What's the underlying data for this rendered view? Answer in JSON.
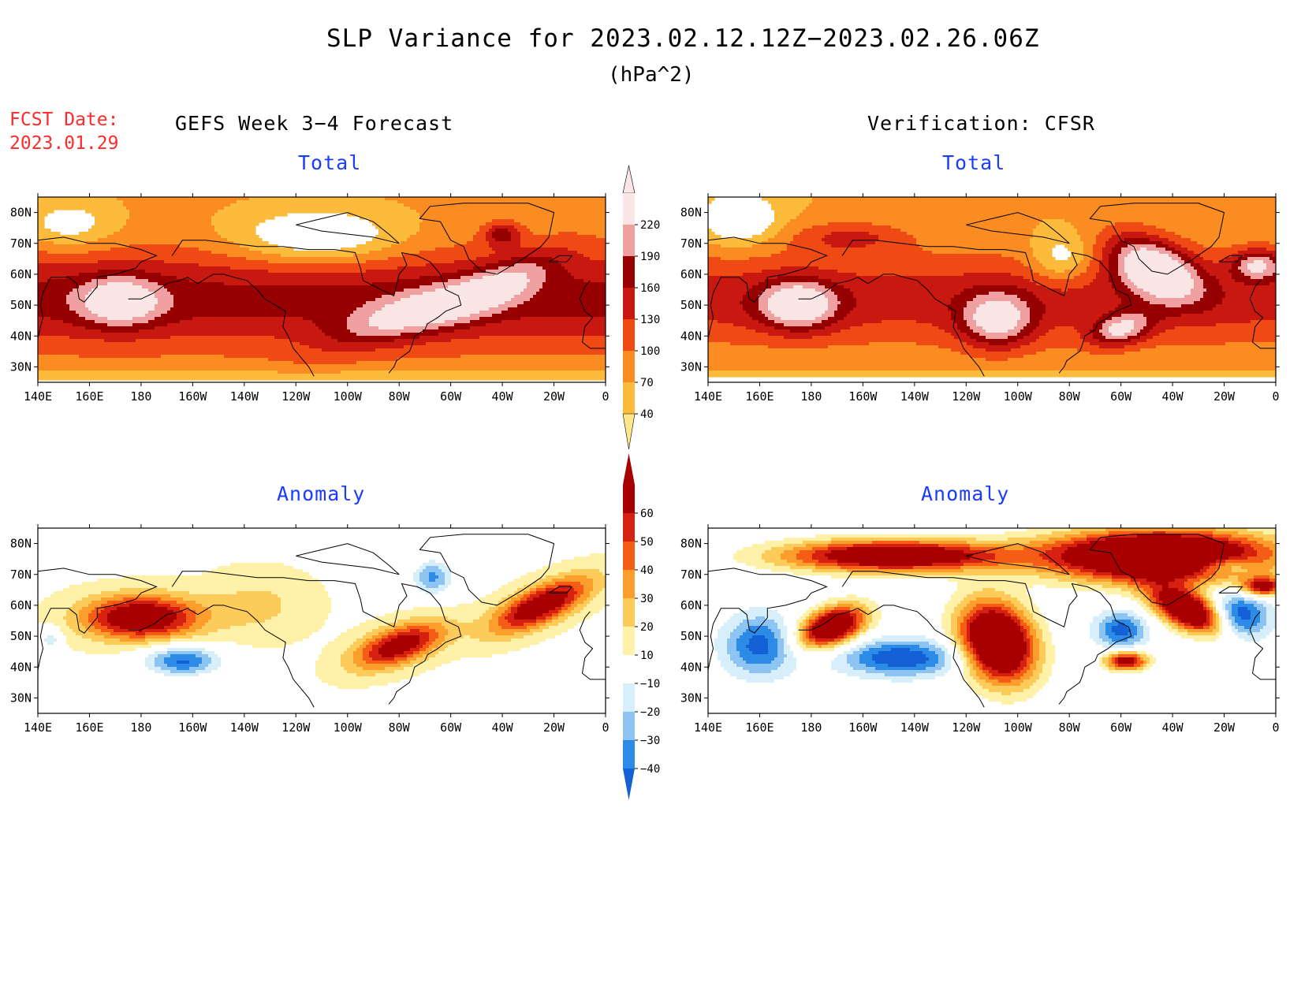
{
  "title": "SLP Variance for 2023.02.12.12Z−2023.02.26.06Z",
  "units": "(hPa^2)",
  "fcst_date_label": "FCST Date:",
  "fcst_date_value": "2023.01.29",
  "left_header": "GEFS Week 3−4 Forecast",
  "right_header": "Verification: CFSR",
  "panels": [
    {
      "id": "forecast-total",
      "subtitle": "Total",
      "field": "total"
    },
    {
      "id": "verification-total",
      "subtitle": "Total",
      "field": "total"
    },
    {
      "id": "forecast-anomaly",
      "subtitle": "Anomaly",
      "field": "anomaly"
    },
    {
      "id": "verification-anomaly",
      "subtitle": "Anomaly",
      "field": "anomaly"
    }
  ],
  "axes": {
    "lon_labels": [
      "140E",
      "160E",
      "180",
      "160W",
      "140W",
      "120W",
      "100W",
      "80W",
      "60W",
      "40W",
      "20W",
      "0"
    ],
    "lat_labels": [
      "30N",
      "40N",
      "50N",
      "60N",
      "70N",
      "80N"
    ]
  },
  "colorbars": {
    "total": {
      "levels": [
        "40",
        "70",
        "100",
        "130",
        "160",
        "190",
        "220"
      ],
      "colors": [
        "#fee88b",
        "#fdbb3c",
        "#fb8c22",
        "#ef4a14",
        "#c81810",
        "#960000",
        "#f0a0a0",
        "#fbe6e6"
      ]
    },
    "anomaly": {
      "levels": [
        "−40",
        "−30",
        "−20",
        "−10",
        "10",
        "20",
        "30",
        "40",
        "50",
        "60"
      ],
      "colors": [
        "#1461d6",
        "#2d8be8",
        "#8ec4f2",
        "#d6effb",
        "#ffffff",
        "#fff2a8",
        "#fdcb5a",
        "#fc9e2c",
        "#f55d16",
        "#d62010",
        "#a80000"
      ]
    }
  },
  "chart_data": [
    {
      "type": "heatmap",
      "title": "Total",
      "group": "GEFS Week 3−4 Forecast",
      "xlabel": "",
      "ylabel": "",
      "lon_range": [
        140,
        360
      ],
      "lat_range": [
        25,
        85
      ],
      "features": [
        {
          "region": "North Pacific (170E, 50N)",
          "level": 220
        },
        {
          "region": "North America (105W–75W, 45N)",
          "level": 160
        },
        {
          "region": "North Atlantic (60W–20W, 50–60N)",
          "level": 190
        },
        {
          "region": "Greenland Sea (40W, 72N)",
          "level": 220
        }
      ]
    },
    {
      "type": "heatmap",
      "title": "Total",
      "group": "Verification: CFSR",
      "xlabel": "",
      "ylabel": "",
      "lon_range": [
        140,
        360
      ],
      "lat_range": [
        25,
        85
      ],
      "features": [
        {
          "region": "North Pacific (175E, 50N)",
          "level": 220
        },
        {
          "region": "Western North America (110W, 45N)",
          "level": 220
        },
        {
          "region": "Greenland / North Atlantic (50W–40W, 50–75N)",
          "level": 220
        },
        {
          "region": "Northwest Atlantic (60W, 42N)",
          "level": 220
        },
        {
          "region": "Northeast Atlantic (10W, 63N)",
          "level": 220
        }
      ]
    },
    {
      "type": "heatmap",
      "title": "Anomaly",
      "group": "GEFS Week 3−4 Forecast",
      "xlabel": "",
      "ylabel": "",
      "lon_range": [
        140,
        360
      ],
      "lat_range": [
        25,
        85
      ],
      "features": [
        {
          "region": "North Pacific (180, 57N)",
          "level": 60
        },
        {
          "region": "Central Pacific (165W, 42N)",
          "level": -40
        },
        {
          "region": "Great Lakes (85W, 47N)",
          "level": 60
        },
        {
          "region": "Northeast Atlantic (15W, 60N)",
          "level": 60
        },
        {
          "region": "Labrador (70W, 68N)",
          "level": -30
        }
      ]
    },
    {
      "type": "heatmap",
      "title": "Anomaly",
      "group": "Verification: CFSR",
      "xlabel": "",
      "ylabel": "",
      "lon_range": [
        140,
        360
      ],
      "lat_range": [
        25,
        85
      ],
      "features": [
        {
          "region": "Alaska / Bering (160W–130W, 75N)",
          "level": 60
        },
        {
          "region": "North Pacific (170E, 50N)",
          "level": 60
        },
        {
          "region": "Western North America (110W, 45N)",
          "level": 60
        },
        {
          "region": "Greenland (60W–20W, 80N)",
          "level": 60
        },
        {
          "region": "Pacific (150W, 42N)",
          "level": -40
        },
        {
          "region": "Labrador Sea (60W, 52N)",
          "level": -30
        },
        {
          "region": "Northeast Atlantic (15W, 55N)",
          "level": -40
        }
      ]
    }
  ]
}
